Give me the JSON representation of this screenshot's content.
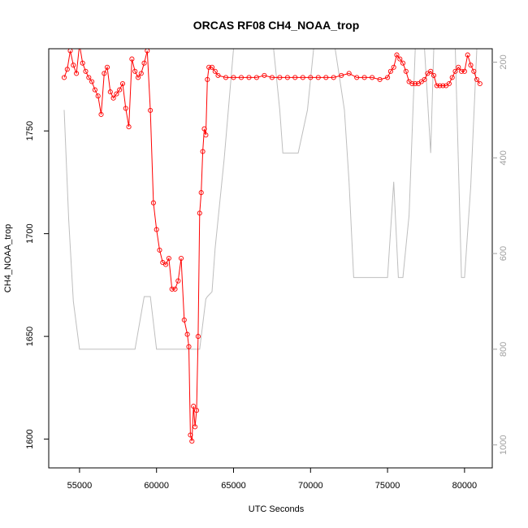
{
  "chart_data": {
    "type": "line",
    "title": "ORCAS RF08 CH4_NOAA_trop",
    "xlabel": "UTC Seconds",
    "ylabel": "CH4_NOAA_trop",
    "xlim": [
      53000,
      81800
    ],
    "ylim": [
      1586,
      1790
    ],
    "x_ticks": [
      55000,
      60000,
      65000,
      70000,
      75000,
      80000
    ],
    "y_ticks": [
      1600,
      1650,
      1700,
      1750
    ],
    "y2lim": [
      1048,
      172
    ],
    "y2_ticks": [
      200,
      400,
      600,
      800,
      1000
    ],
    "colors": {
      "ch4": "#ff0000",
      "pressure": "#bebebe",
      "axis": "#000000",
      "right_axis": "#a0a0a0"
    },
    "series": [
      {
        "marker": "open-circle",
        "x": [
          54000,
          54200,
          54400,
          54600,
          54800,
          55000,
          55200,
          55400,
          55600,
          55800,
          56000,
          56200,
          56400,
          56600,
          56800,
          57000,
          57200,
          57400,
          57600,
          57800,
          58000,
          58200,
          58400,
          58600,
          58800,
          59000,
          59200,
          59400,
          59600,
          59800,
          60000,
          60200,
          60400,
          60600,
          60800,
          61000,
          61200,
          61400,
          61600,
          61800,
          62000,
          62100,
          62200,
          62300,
          62400,
          62500,
          62600,
          62700,
          62800,
          62900,
          63000,
          63100,
          63200,
          63300,
          63400,
          63600,
          63800,
          64000,
          64500,
          65000,
          65500,
          66000,
          66500,
          67000,
          67500,
          68000,
          68500,
          69000,
          69500,
          70000,
          70500,
          71000,
          71500,
          72000,
          72500,
          73000,
          73500,
          74000,
          74500,
          75000,
          75200,
          75400,
          75600,
          75800,
          76000,
          76200,
          76400,
          76600,
          76800,
          77000,
          77200,
          77400,
          77600,
          77800,
          78000,
          78200,
          78400,
          78600,
          78800,
          79000,
          79200,
          79400,
          79600,
          79800,
          80000,
          80200,
          80400,
          80600,
          80800,
          81000
        ],
        "y": [
          1776,
          1780,
          1789,
          1782,
          1778,
          1792,
          1783,
          1779,
          1776,
          1774,
          1770,
          1767,
          1758,
          1778,
          1781,
          1769,
          1766,
          1768,
          1770,
          1773,
          1761,
          1752,
          1785,
          1779,
          1776,
          1778,
          1783,
          1789,
          1760,
          1715,
          1702,
          1692,
          1686,
          1685,
          1688,
          1673,
          1673,
          1677,
          1688,
          1658,
          1651,
          1645,
          1602,
          1599,
          1616,
          1606,
          1614,
          1650,
          1710,
          1720,
          1740,
          1751,
          1748,
          1775,
          1781,
          1781,
          1779,
          1777,
          1776,
          1776,
          1776,
          1776,
          1776,
          1777,
          1776,
          1776,
          1776,
          1776,
          1776,
          1776,
          1776,
          1776,
          1776,
          1777,
          1778,
          1776,
          1776,
          1776,
          1775,
          1776,
          1779,
          1781,
          1787,
          1785,
          1783,
          1779,
          1774,
          1773,
          1773,
          1773,
          1774,
          1775,
          1778,
          1779,
          1777,
          1772,
          1772,
          1772,
          1772,
          1773,
          1776,
          1779,
          1781,
          1779,
          1779,
          1787,
          1782,
          1779,
          1775,
          1773
        ]
      },
      {
        "axis": "right",
        "x": [
          54000,
          54300,
          54600,
          55000,
          55600,
          56200,
          56800,
          57400,
          58000,
          58600,
          59200,
          59600,
          60000,
          60600,
          61200,
          61800,
          62400,
          62800,
          63200,
          63300,
          63600,
          63800,
          64400,
          65000,
          65600,
          66200,
          66700,
          67200,
          67600,
          68000,
          68200,
          68600,
          69200,
          69800,
          70200,
          70600,
          71000,
          71600,
          72200,
          72500,
          72800,
          73200,
          73800,
          74400,
          75000,
          75400,
          75700,
          76000,
          76400,
          76800,
          77400,
          77600,
          77800,
          78000,
          78400,
          79000,
          79400,
          79800,
          80000,
          80400,
          80800,
          81000
        ],
        "y": [
          300,
          530,
          700,
          800,
          800,
          800,
          800,
          800,
          800,
          800,
          690,
          690,
          800,
          800,
          800,
          800,
          800,
          800,
          695,
          690,
          680,
          590,
          400,
          172,
          172,
          172,
          172,
          172,
          172,
          300,
          390,
          390,
          390,
          300,
          172,
          172,
          172,
          172,
          300,
          450,
          650,
          650,
          650,
          650,
          650,
          450,
          650,
          650,
          520,
          172,
          172,
          280,
          390,
          172,
          172,
          172,
          172,
          650,
          650,
          460,
          172,
          172
        ]
      }
    ]
  }
}
